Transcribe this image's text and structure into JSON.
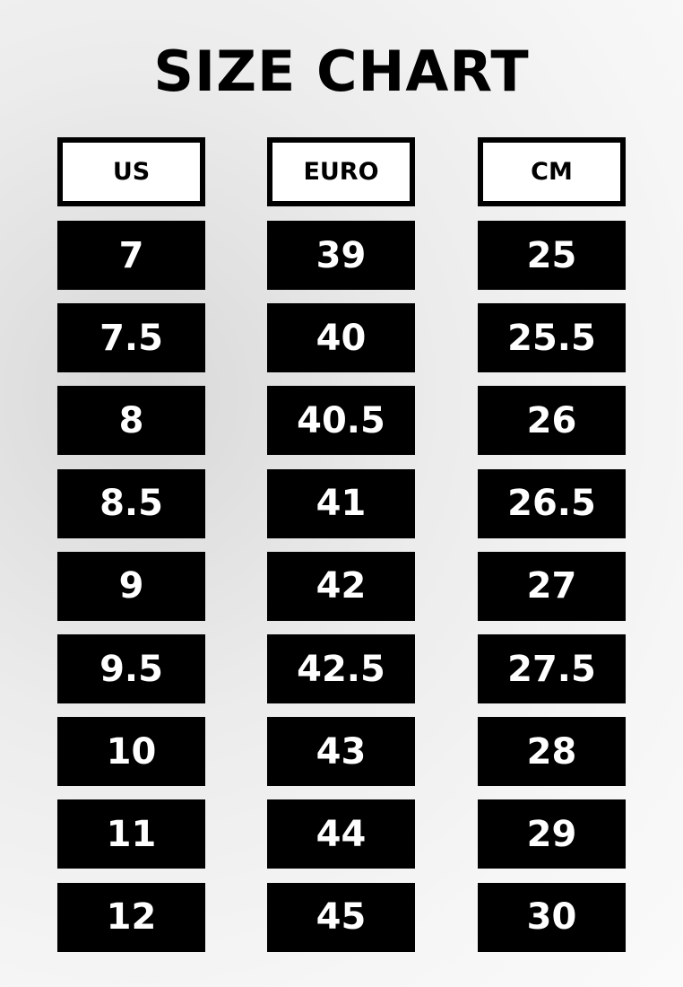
{
  "title": "SIZE CHART",
  "columns": [
    {
      "header": "US",
      "values": [
        "7",
        "7.5",
        "8",
        "8.5",
        "9",
        "9.5",
        "10",
        "11",
        "12"
      ]
    },
    {
      "header": "EURO",
      "values": [
        "39",
        "40",
        "40.5",
        "41",
        "42",
        "42.5",
        "43",
        "44",
        "45"
      ]
    },
    {
      "header": "CM",
      "values": [
        "25",
        "25.5",
        "26",
        "26.5",
        "27",
        "27.5",
        "28",
        "29",
        "30"
      ]
    }
  ]
}
